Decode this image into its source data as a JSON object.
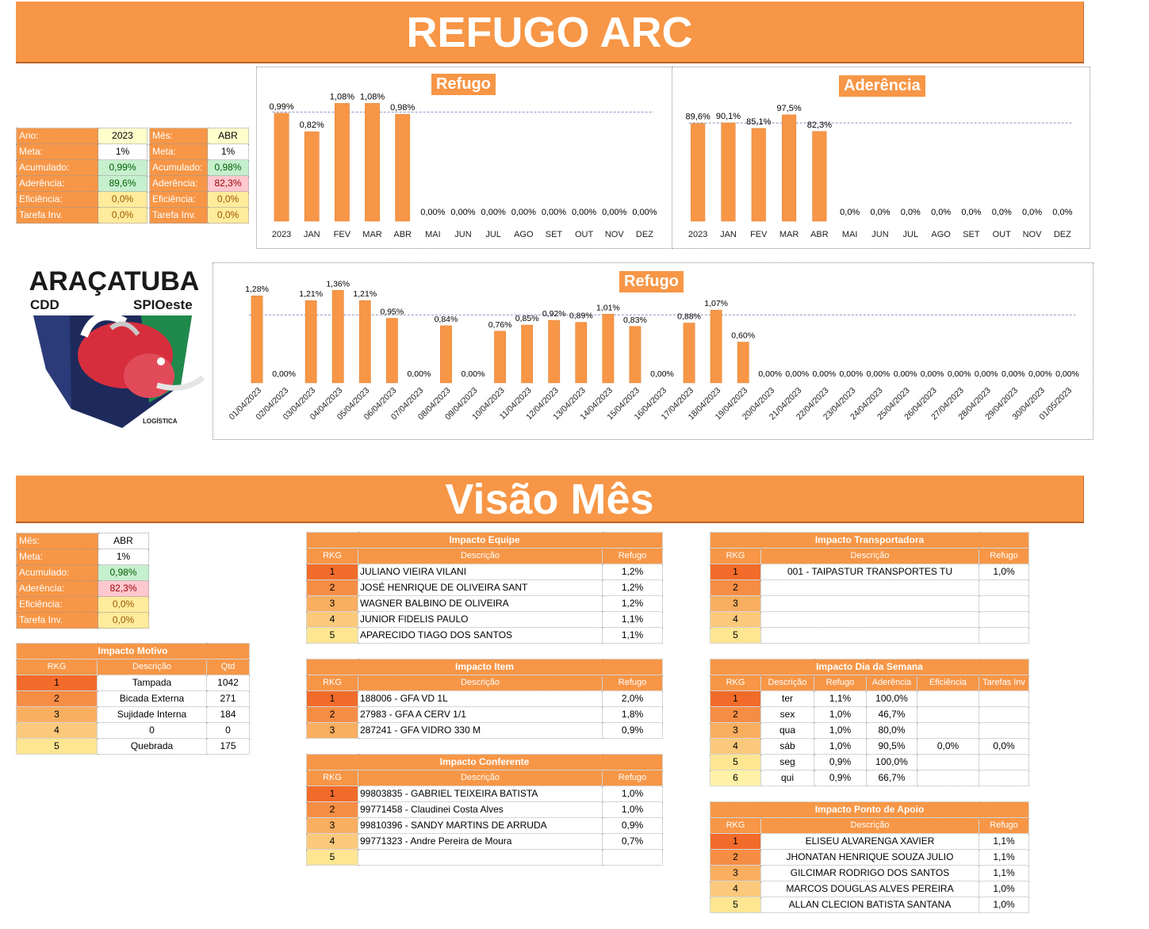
{
  "header": {
    "title": "REFUGO ARC"
  },
  "summary": {
    "left": [
      {
        "label": "Ano:",
        "value": "2023",
        "style": "hi"
      },
      {
        "label": "Meta:",
        "value": "1%",
        "style": ""
      },
      {
        "label": "Acumulado:",
        "value": "0,99%",
        "style": "green"
      },
      {
        "label": "Aderência:",
        "value": "89,6%",
        "style": "green"
      },
      {
        "label": "Eficiência:",
        "value": "0,0%",
        "style": "yellow"
      },
      {
        "label": "Tarefa Inv.",
        "value": "0,0%",
        "style": "yellow"
      }
    ],
    "right": [
      {
        "label": "Mês:",
        "value": "ABR",
        "style": "hi"
      },
      {
        "label": "Meta:",
        "value": "1%",
        "style": ""
      },
      {
        "label": "Acumulado:",
        "value": "0,98%",
        "style": "green"
      },
      {
        "label": "Aderência:",
        "value": "82,3%",
        "style": "red"
      },
      {
        "label": "Eficiência:",
        "value": "0,0%",
        "style": "yellow"
      },
      {
        "label": "Tarefa Inv.",
        "value": "0,0%",
        "style": "yellow"
      }
    ]
  },
  "logo": {
    "line1": "ARAÇATUBA",
    "left": "CDD",
    "right": "SPIOeste",
    "bottom": "LOGÍSTICA"
  },
  "chart_data": [
    {
      "type": "bar",
      "title": "Refugo",
      "categories": [
        "2023",
        "JAN",
        "FEV",
        "MAR",
        "ABR",
        "MAI",
        "JUN",
        "JUL",
        "AGO",
        "SET",
        "OUT",
        "NOV",
        "DEZ"
      ],
      "values": [
        0.99,
        0.82,
        1.08,
        1.08,
        0.98,
        0,
        0,
        0,
        0,
        0,
        0,
        0,
        0
      ],
      "labels": [
        "0,99%",
        "0,82%",
        "1,08%",
        "1,08%",
        "0,98%",
        "0,00%",
        "0,00%",
        "0,00%",
        "0,00%",
        "0,00%",
        "0,00%",
        "0,00%",
        "0,00%"
      ],
      "target": 1.0,
      "ylim": [
        0,
        1.25
      ],
      "color": "#F79646"
    },
    {
      "type": "bar",
      "title": "Aderência",
      "categories": [
        "2023",
        "JAN",
        "FEV",
        "MAR",
        "ABR",
        "MAI",
        "JUN",
        "JUL",
        "AGO",
        "SET",
        "OUT",
        "NOV",
        "DEZ"
      ],
      "values": [
        89.6,
        90.1,
        85.1,
        97.5,
        82.3,
        0,
        0,
        0,
        0,
        0,
        0,
        0,
        0
      ],
      "labels": [
        "89,6%",
        "90,1%",
        "85,1%",
        "97,5%",
        "82,3%",
        "0,0%",
        "0,0%",
        "0,0%",
        "0,0%",
        "0,0%",
        "0,0%",
        "0,0%",
        "0,0%"
      ],
      "target": 90,
      "ylim": [
        0,
        125
      ],
      "color": "#F79646"
    },
    {
      "type": "bar",
      "title": "Refugo",
      "categories": [
        "01/04/2023",
        "02/04/2023",
        "03/04/2023",
        "04/04/2023",
        "05/04/2023",
        "06/04/2023",
        "07/04/2023",
        "08/04/2023",
        "09/04/2023",
        "10/04/2023",
        "11/04/2023",
        "12/04/2023",
        "13/04/2023",
        "14/04/2023",
        "15/04/2023",
        "16/04/2023",
        "17/04/2023",
        "18/04/2023",
        "19/04/2023",
        "20/04/2023",
        "21/04/2023",
        "22/04/2023",
        "23/04/2023",
        "24/04/2023",
        "25/04/2023",
        "26/04/2023",
        "27/04/2023",
        "28/04/2023",
        "29/04/2023",
        "30/04/2023",
        "01/05/2023"
      ],
      "values": [
        1.28,
        0,
        1.21,
        1.36,
        1.21,
        0.95,
        0,
        0.84,
        0,
        0.76,
        0.85,
        0.92,
        0.89,
        1.01,
        0.83,
        0,
        0.88,
        1.07,
        0.6,
        0,
        0,
        0,
        0,
        0,
        0,
        0,
        0,
        0,
        0,
        0,
        0
      ],
      "labels": [
        "1,28%",
        "0,00%",
        "1,21%",
        "1,36%",
        "1,21%",
        "0,95%",
        "0,00%",
        "0,84%",
        "0,00%",
        "0,76%",
        "0,85%",
        "0,92%",
        "0,89%",
        "1,01%",
        "0,83%",
        "0,00%",
        "0,88%",
        "1,07%",
        "0,60%",
        "0,00%",
        "0,00%",
        "0,00%",
        "0,00%",
        "0,00%",
        "0,00%",
        "0,00%",
        "0,00%",
        "0,00%",
        "0,00%",
        "0,00%",
        "0,00%"
      ],
      "target": 1.0,
      "ylim": [
        0,
        1.55
      ],
      "color": "#F79646"
    }
  ],
  "visao": {
    "title": "Visão Mês",
    "summary": [
      {
        "label": "Mês:",
        "value": "ABR",
        "style": ""
      },
      {
        "label": "Meta:",
        "value": "1%",
        "style": ""
      },
      {
        "label": "Acumulado:",
        "value": "0,98%",
        "style": "green"
      },
      {
        "label": "Aderência:",
        "value": "82,3%",
        "style": "red"
      },
      {
        "label": "Eficiência:",
        "value": "0,0%",
        "style": "yellow"
      },
      {
        "label": "Tarefa Inv.",
        "value": "0,0%",
        "style": "yellow"
      }
    ],
    "motivo": {
      "title": "Impacto Motivo",
      "headers": [
        "RKG",
        "Descrição",
        "Qtd"
      ],
      "rows": [
        [
          "1",
          "Tampada",
          "1042"
        ],
        [
          "2",
          "Bicada Externa",
          "271"
        ],
        [
          "3",
          "Sujidade Interna",
          "184"
        ],
        [
          "4",
          "0",
          "0"
        ],
        [
          "5",
          "Quebrada",
          "175"
        ]
      ]
    },
    "equipe": {
      "title": "Impacto Equipe",
      "headers": [
        "RKG",
        "Descrição",
        "Refugo"
      ],
      "rows": [
        [
          "1",
          "JULIANO VIEIRA VILANI",
          "1,2%"
        ],
        [
          "2",
          "JOSÉ HENRIQUE DE OLIVEIRA SANT",
          "1,2%"
        ],
        [
          "3",
          "WAGNER BALBINO DE OLIVEIRA",
          "1,2%"
        ],
        [
          "4",
          "JUNIOR FIDELIS PAULO",
          "1,1%"
        ],
        [
          "5",
          "APARECIDO TIAGO DOS SANTOS",
          "1,1%"
        ]
      ]
    },
    "item": {
      "title": "Impacto Item",
      "headers": [
        "RKG",
        "Descrição",
        "Refugo"
      ],
      "rows": [
        [
          "1",
          "188006 - GFA VD 1L",
          "2,0%"
        ],
        [
          "2",
          "27983 - GFA A CERV 1/1",
          "1,8%"
        ],
        [
          "3",
          "287241 - GFA VIDRO 330 M",
          "0,9%"
        ]
      ]
    },
    "conferente": {
      "title": "Impacto Conferente",
      "headers": [
        "RKG",
        "Descrição",
        "Refugo"
      ],
      "rows": [
        [
          "1",
          "99803835 - GABRIEL TEIXEIRA BATISTA",
          "1,0%"
        ],
        [
          "2",
          "99771458 - Claudinei Costa Alves",
          "1,0%"
        ],
        [
          "3",
          "99810396 - SANDY MARTINS DE ARRUDA",
          "0,9%"
        ],
        [
          "4",
          "99771323 - Andre Pereira de Moura",
          "0,7%"
        ],
        [
          "5",
          "",
          ""
        ]
      ]
    },
    "transportadora": {
      "title": "Impacto Transportadora",
      "headers": [
        "RKG",
        "Descrição",
        "Refugo"
      ],
      "rows": [
        [
          "1",
          "001 - TAIPASTUR TRANSPORTES TU",
          "1,0%"
        ],
        [
          "2",
          "",
          ""
        ],
        [
          "3",
          "",
          ""
        ],
        [
          "4",
          "",
          ""
        ],
        [
          "5",
          "",
          ""
        ]
      ]
    },
    "dia_semana": {
      "title": "Impacto Dia da Semana",
      "headers": [
        "RKG",
        "Descrição",
        "Refugo",
        "Aderência",
        "Eficiência",
        "Tarefas Inv"
      ],
      "rows": [
        [
          "1",
          "ter",
          "1,1%",
          "100,0%",
          "",
          ""
        ],
        [
          "2",
          "sex",
          "1,0%",
          "46,7%",
          "",
          ""
        ],
        [
          "3",
          "qua",
          "1,0%",
          "80,0%",
          "",
          ""
        ],
        [
          "4",
          "sáb",
          "1,0%",
          "90,5%",
          "0,0%",
          "0,0%"
        ],
        [
          "5",
          "seg",
          "0,9%",
          "100,0%",
          "",
          ""
        ],
        [
          "6",
          "qui",
          "0,9%",
          "66,7%",
          "",
          ""
        ]
      ]
    },
    "ponto_apoio": {
      "title": "Impacto Ponto de Apoio",
      "headers": [
        "RKG",
        "Descrição",
        "Refugo"
      ],
      "rows": [
        [
          "1",
          "ELISEU ALVARENGA XAVIER",
          "1,1%"
        ],
        [
          "2",
          "JHONATAN HENRIQUE SOUZA JULIO",
          "1,1%"
        ],
        [
          "3",
          "GILCIMAR RODRIGO DOS SANTOS",
          "1,1%"
        ],
        [
          "4",
          "MARCOS DOUGLAS ALVES PEREIRA",
          "1,0%"
        ],
        [
          "5",
          "ALLAN CLECION BATISTA SANTANA",
          "1,0%"
        ]
      ]
    }
  }
}
